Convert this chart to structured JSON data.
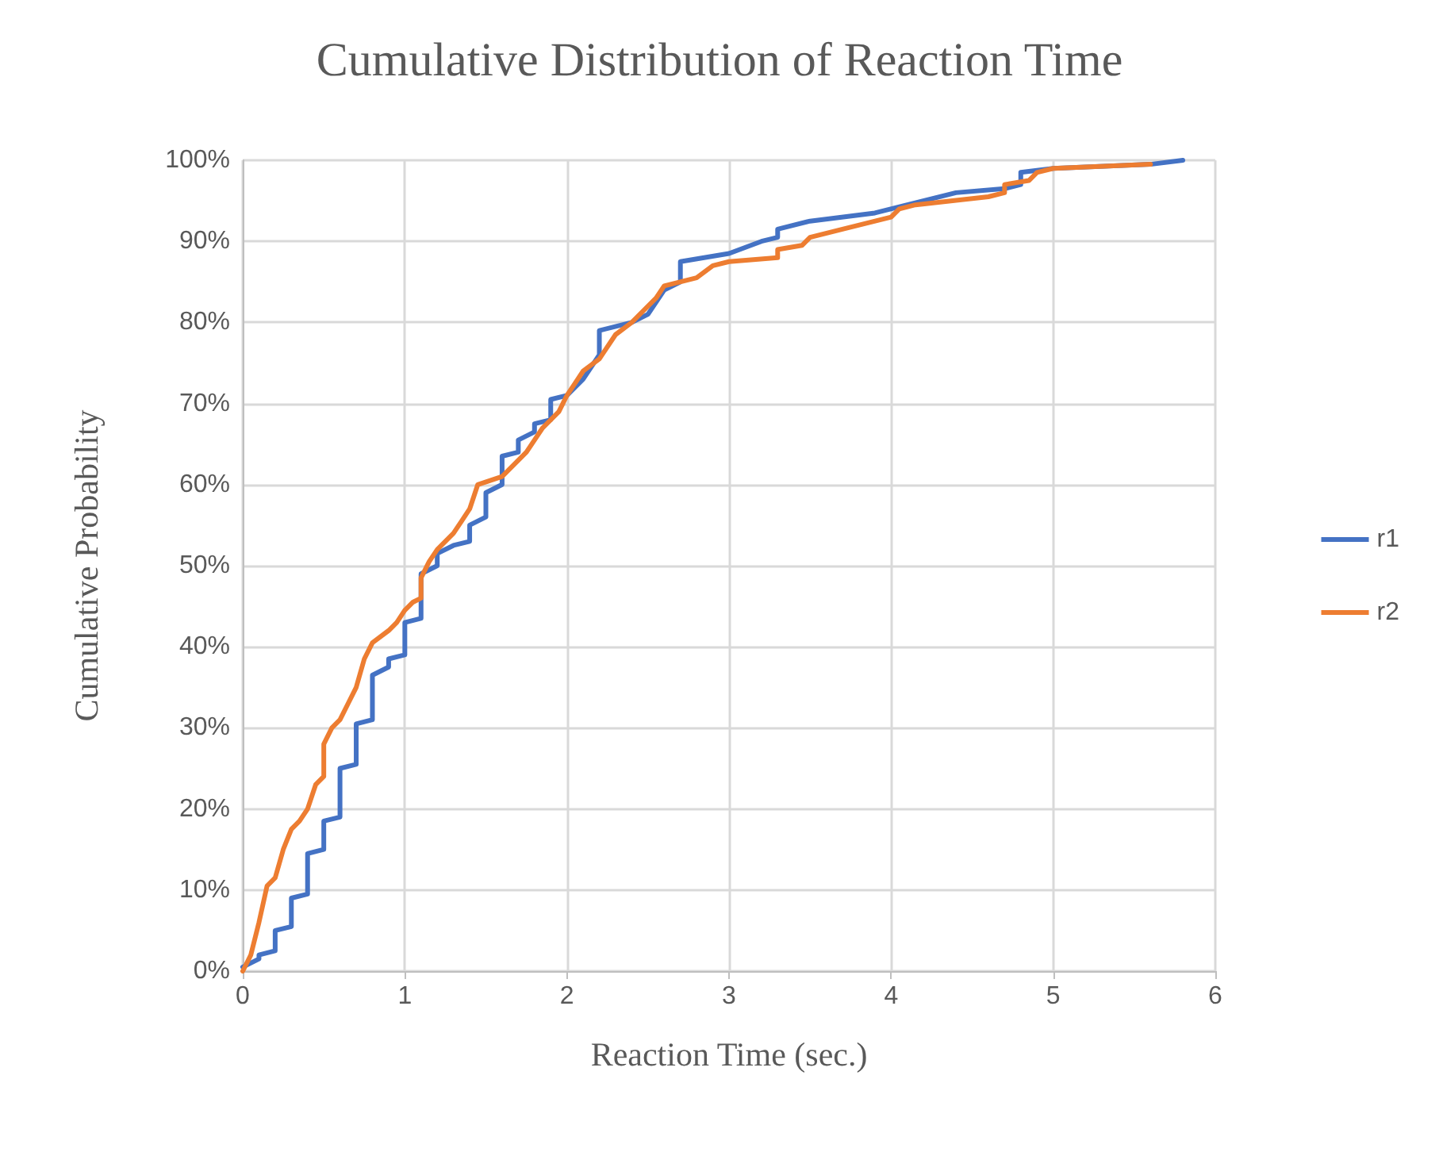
{
  "chart_data": {
    "type": "line",
    "title": "Cumulative Distribution of Reaction Time",
    "xlabel": "Reaction Time (sec.)",
    "ylabel": "Cumulative Probability",
    "xlim": [
      0,
      6
    ],
    "xticks": [
      0,
      1,
      2,
      3,
      4,
      5,
      6
    ],
    "ylim": [
      0,
      100
    ],
    "yticks": [
      {
        "value": 0,
        "label": "0%"
      },
      {
        "value": 10,
        "label": "10%"
      },
      {
        "value": 20,
        "label": "20%"
      },
      {
        "value": 30,
        "label": "30%"
      },
      {
        "value": 40,
        "label": "40%"
      },
      {
        "value": 50,
        "label": "50%"
      },
      {
        "value": 60,
        "label": "60%"
      },
      {
        "value": 70,
        "label": "70%"
      },
      {
        "value": 80,
        "label": "80%"
      },
      {
        "value": 90,
        "label": "90%"
      },
      {
        "value": 100,
        "label": "100%"
      }
    ],
    "grid": true,
    "legend": "right",
    "marker": "none",
    "line_style": "solid",
    "series": [
      {
        "name": "r1",
        "color": "#4472c4",
        "x": [
          0,
          0.1,
          0.1,
          0.2,
          0.2,
          0.3,
          0.3,
          0.4,
          0.4,
          0.5,
          0.5,
          0.6,
          0.6,
          0.7,
          0.7,
          0.8,
          0.8,
          0.9,
          0.9,
          1.0,
          1.0,
          1.1,
          1.1,
          1.2,
          1.2,
          1.3,
          1.4,
          1.4,
          1.5,
          1.5,
          1.6,
          1.6,
          1.7,
          1.7,
          1.8,
          1.8,
          1.9,
          1.9,
          2.0,
          2.1,
          2.2,
          2.2,
          2.4,
          2.5,
          2.6,
          2.7,
          2.7,
          3.0,
          3.2,
          3.3,
          3.3,
          3.5,
          3.9,
          4.1,
          4.4,
          4.7,
          4.8,
          4.8,
          5.0,
          5.6,
          5.8
        ],
        "values": [
          0.5,
          1.5,
          2,
          2.5,
          5,
          5.5,
          9,
          9.5,
          14.5,
          15,
          18.5,
          19,
          25,
          25.5,
          30.5,
          31,
          36.5,
          37.5,
          38.5,
          39,
          43,
          43.5,
          49,
          50,
          51.5,
          52.5,
          53,
          55,
          56,
          59,
          60,
          63.5,
          64,
          65.5,
          66.5,
          67.5,
          68,
          70.5,
          71,
          73,
          76,
          79,
          80,
          81,
          84,
          85,
          87.5,
          88.5,
          90,
          90.5,
          91.5,
          92.5,
          93.5,
          94.5,
          96,
          96.5,
          97,
          98.5,
          99,
          99.5,
          100
        ]
      },
      {
        "name": "r2",
        "color": "#ed7d31",
        "x": [
          0,
          0.05,
          0.1,
          0.15,
          0.2,
          0.25,
          0.3,
          0.35,
          0.4,
          0.45,
          0.5,
          0.5,
          0.55,
          0.6,
          0.65,
          0.7,
          0.75,
          0.8,
          0.9,
          0.95,
          1.0,
          1.05,
          1.1,
          1.1,
          1.15,
          1.2,
          1.3,
          1.35,
          1.4,
          1.45,
          1.6,
          1.7,
          1.75,
          1.8,
          1.85,
          1.95,
          2.0,
          2.05,
          2.1,
          2.2,
          2.3,
          2.4,
          2.5,
          2.55,
          2.6,
          2.8,
          2.9,
          3.0,
          3.3,
          3.3,
          3.45,
          3.5,
          3.7,
          4.0,
          4.05,
          4.15,
          4.6,
          4.7,
          4.7,
          4.85,
          4.9,
          5.0,
          5.6
        ],
        "values": [
          0,
          2,
          6,
          10.5,
          11.5,
          15,
          17.5,
          18.5,
          20,
          23,
          24,
          28,
          30,
          31,
          33,
          35,
          38.5,
          40.5,
          42,
          43,
          44.5,
          45.5,
          46,
          48.5,
          50.5,
          52,
          54,
          55.5,
          57,
          60,
          61,
          63,
          64,
          65.5,
          67,
          69,
          71,
          72.5,
          74,
          75.5,
          78.5,
          80,
          82,
          83,
          84.5,
          85.5,
          87,
          87.5,
          88,
          89,
          89.5,
          90.5,
          91.5,
          93,
          94,
          94.5,
          95.5,
          96,
          97,
          97.5,
          98.5,
          99,
          99.5
        ]
      }
    ]
  }
}
